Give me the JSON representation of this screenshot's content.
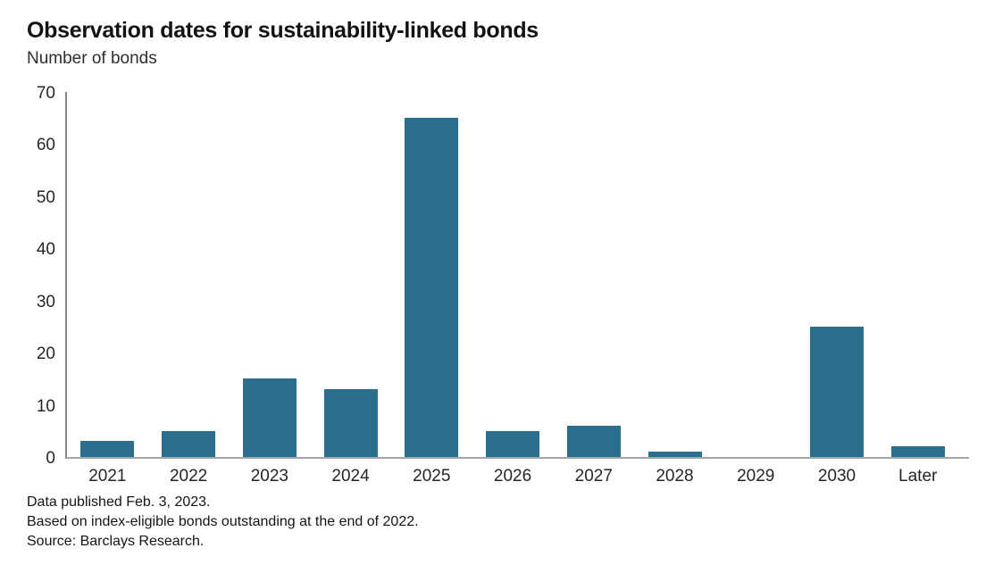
{
  "header": {
    "title": "Observation dates for sustainability-linked bonds",
    "subtitle": "Number of bonds"
  },
  "chart_data": {
    "type": "bar",
    "title": "Observation dates for sustainability-linked bonds",
    "subtitle": "Number of bonds",
    "ylabel": "Number of bonds",
    "xlabel": "",
    "categories": [
      "2021",
      "2022",
      "2023",
      "2024",
      "2025",
      "2026",
      "2027",
      "2028",
      "2029",
      "2030",
      "Later"
    ],
    "values": [
      3,
      5,
      15,
      13,
      65,
      5,
      6,
      1,
      0,
      25,
      2
    ],
    "ylim": [
      0,
      70
    ],
    "yticks": [
      0,
      10,
      20,
      30,
      40,
      50,
      60,
      70
    ],
    "grid": false,
    "legend_position": "none",
    "bar_color": "#2d6e8d",
    "y_axis_color": "#858585",
    "x_axis_color": "#a6a6a6"
  },
  "footnotes": {
    "line1": "Data published Feb. 3, 2023.",
    "line2": "Based on index-eligible bonds outstanding at the end of 2022.",
    "line3": "Source: Barclays Research."
  }
}
